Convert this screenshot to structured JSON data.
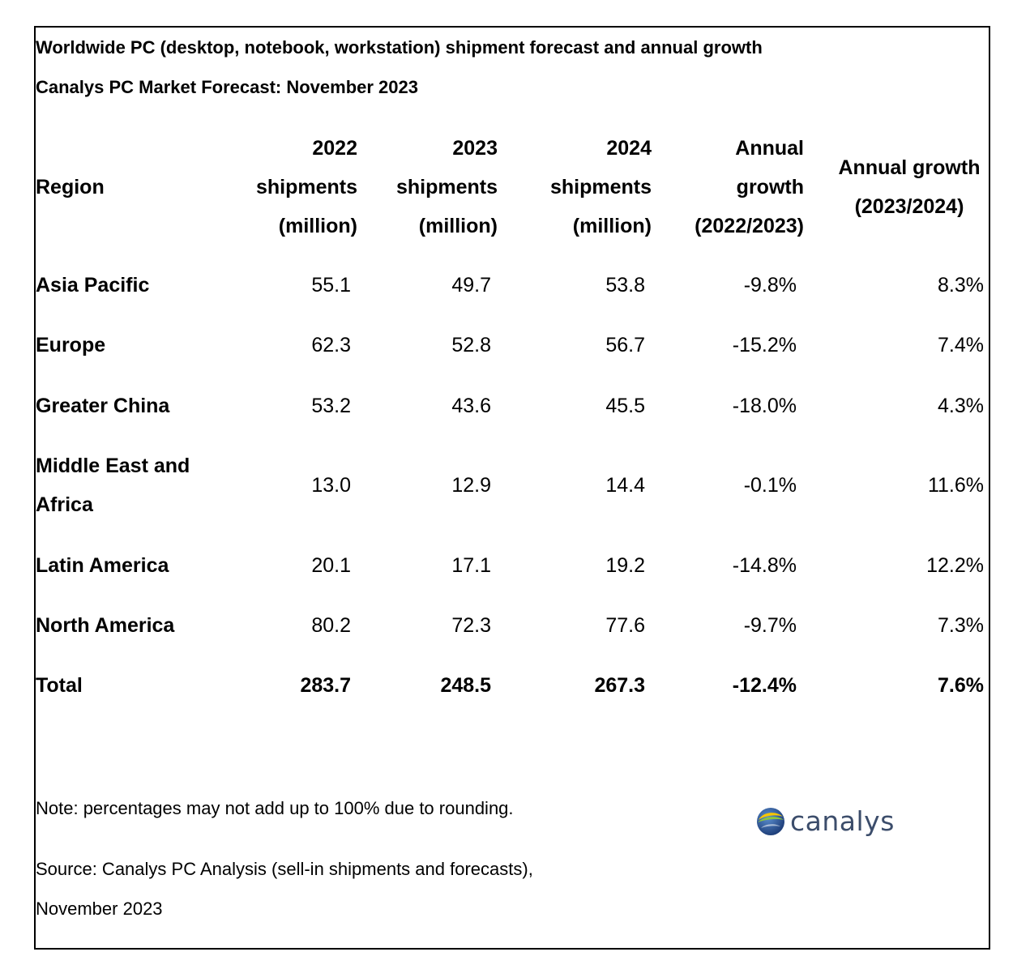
{
  "title": "Worldwide PC (desktop, notebook, workstation) shipment forecast and annual growth",
  "subtitle": "Canalys PC Market Forecast: November 2023",
  "colors": {
    "logo_text": "#3c4d6b",
    "logo_blue": "#1f4e8c",
    "logo_green": "#8cc63f",
    "logo_yellow": "#f7c600"
  },
  "chart_data": {
    "type": "table",
    "title": "Worldwide PC (desktop, notebook, workstation) shipment forecast and annual growth",
    "subtitle": "Canalys PC Market Forecast: November 2023",
    "columns": [
      "Region",
      "2022\nshipments\n(million)",
      "2023\nshipments\n(million)",
      "2024\nshipments\n(million)",
      "Annual\ngrowth\n(2022/2023)",
      "Annual growth\n(2023/2024)"
    ],
    "rows": [
      [
        "Asia Pacific",
        "55.1",
        "49.7",
        "53.8",
        "-9.8%",
        "8.3%"
      ],
      [
        "Europe",
        "62.3",
        "52.8",
        "56.7",
        "-15.2%",
        "7.4%"
      ],
      [
        "Greater China",
        "53.2",
        "43.6",
        "45.5",
        "-18.0%",
        "4.3%"
      ],
      [
        "Middle East and\nAfrica",
        "13.0",
        "12.9",
        "14.4",
        "-0.1%",
        "11.6%"
      ],
      [
        "Latin America",
        "20.1",
        "17.1",
        "19.2",
        "-14.8%",
        "12.2%"
      ],
      [
        "North America",
        "80.2",
        "72.3",
        "77.6",
        "-9.7%",
        "7.3%"
      ],
      [
        "Total",
        "283.7",
        "248.5",
        "267.3",
        "-12.4%",
        "7.6%"
      ]
    ]
  },
  "note": "Note: percentages may not add up to 100% due to rounding.",
  "source": "Source: Canalys PC Analysis (sell-in shipments and forecasts),\nNovember 2023",
  "logo": {
    "icon": "canalys-globe-icon",
    "text": "canalys"
  }
}
